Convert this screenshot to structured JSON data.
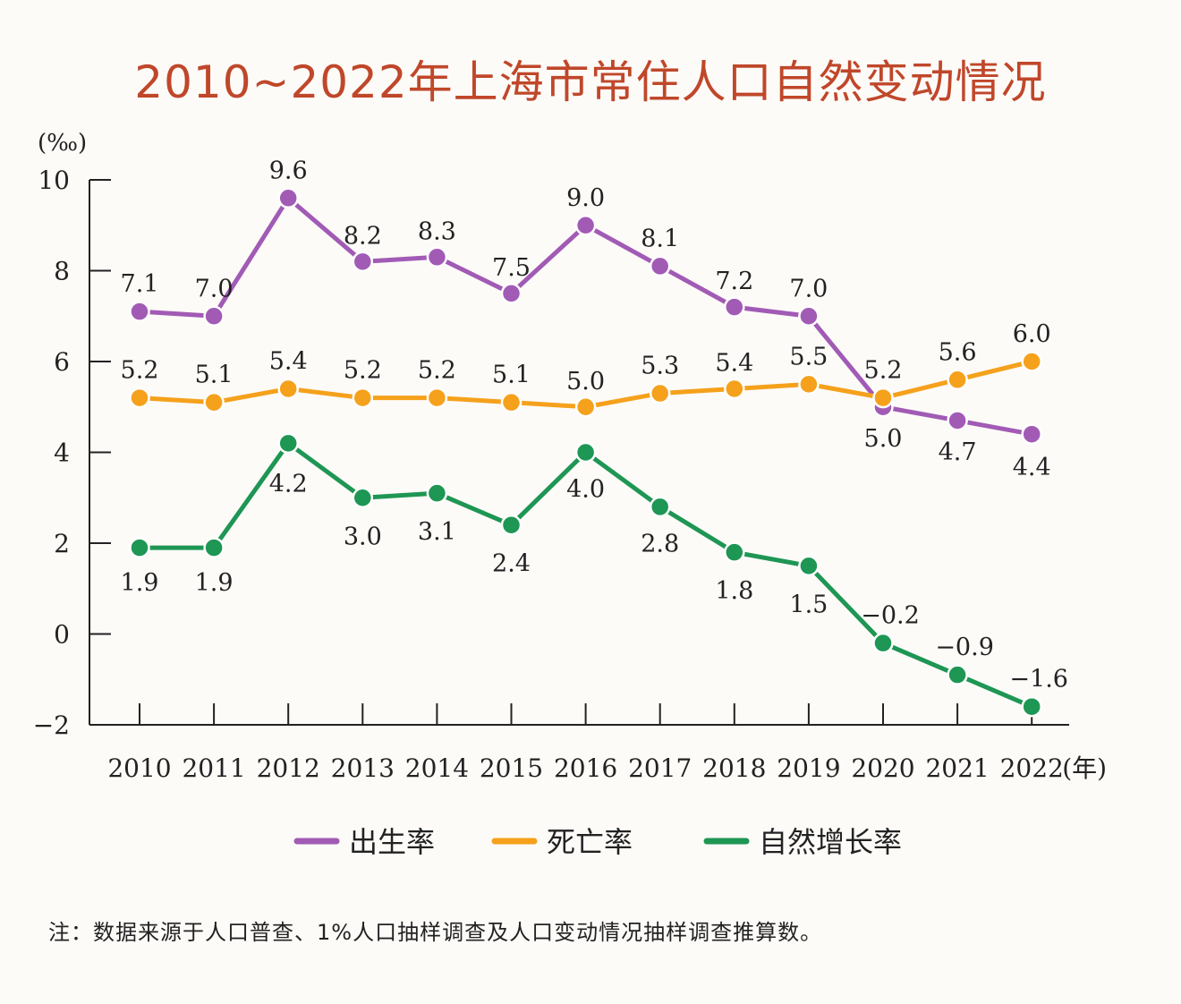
{
  "chart_data": {
    "type": "line",
    "title": "2010~2022年上海市常住人口自然变动情况",
    "ylabel": "(‰)",
    "xlabel": "(年)",
    "ylim": [
      -2,
      10
    ],
    "yticks": [
      10,
      8,
      6,
      4,
      2,
      0,
      -2
    ],
    "yticklabels": [
      "10",
      "8",
      "6",
      "4",
      "2",
      "0",
      "−2"
    ],
    "categories": [
      "2010",
      "2011",
      "2012",
      "2013",
      "2014",
      "2015",
      "2016",
      "2017",
      "2018",
      "2019",
      "2020",
      "2021",
      "2022"
    ],
    "series": [
      {
        "name": "出生率",
        "color": "#a15bb5",
        "values": [
          7.1,
          7.0,
          9.6,
          8.2,
          8.3,
          7.5,
          9.0,
          8.1,
          7.2,
          7.0,
          5.0,
          4.7,
          4.4
        ],
        "labels": [
          "7.1",
          "7.0",
          "9.6",
          "8.2",
          "8.3",
          "7.5",
          "9.0",
          "8.1",
          "7.2",
          "7.0",
          "5.0",
          "4.7",
          "4.4"
        ]
      },
      {
        "name": "死亡率",
        "color": "#f5a11c",
        "values": [
          5.2,
          5.1,
          5.4,
          5.2,
          5.2,
          5.1,
          5.0,
          5.3,
          5.4,
          5.5,
          5.2,
          5.6,
          6.0
        ],
        "labels": [
          "5.2",
          "5.1",
          "5.4",
          "5.2",
          "5.2",
          "5.1",
          "5.0",
          "5.3",
          "5.4",
          "5.5",
          "5.2",
          "5.6",
          "6.0"
        ]
      },
      {
        "name": "自然增长率",
        "color": "#1e9654",
        "values": [
          1.9,
          1.9,
          4.2,
          3.0,
          3.1,
          2.4,
          4.0,
          2.8,
          1.8,
          1.5,
          -0.2,
          -0.9,
          -1.6
        ],
        "labels": [
          "1.9",
          "1.9",
          "4.2",
          "3.0",
          "3.1",
          "2.4",
          "4.0",
          "2.8",
          "1.8",
          "1.5",
          "−0.2",
          "−0.9",
          "−1.6"
        ]
      }
    ],
    "legend": "bottom",
    "grid": false
  },
  "footnote": "注：数据来源于人口普查、1%人口抽样调查及人口变动情况抽样调查推算数。"
}
